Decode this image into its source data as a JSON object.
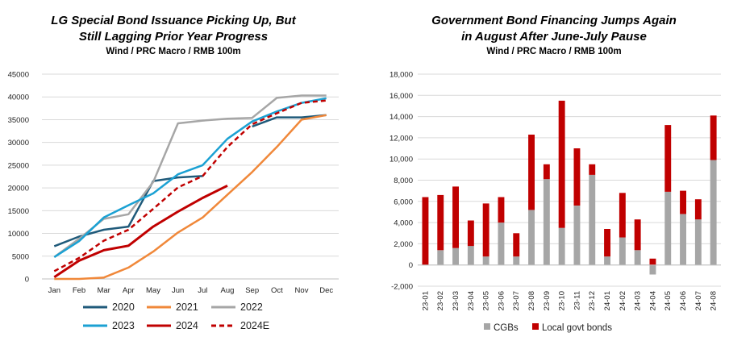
{
  "chart_data": [
    {
      "type": "line",
      "title_lines": [
        "LG Special Bond Issuance Picking Up, But",
        "Still Lagging Prior Year Progress"
      ],
      "subtitle": "Wind / PRC Macro / RMB 100m",
      "categories": [
        "Jan",
        "Feb",
        "Mar",
        "Apr",
        "May",
        "Jun",
        "Jul",
        "Aug",
        "Sep",
        "Oct",
        "Nov",
        "Dec"
      ],
      "ylim": [
        0,
        45000
      ],
      "yticks": [
        "0",
        "5000",
        "10000",
        "15000",
        "20000",
        "25000",
        "30000",
        "35000",
        "40000",
        "45000"
      ],
      "grid": "horizontal",
      "legend_position": "bottom",
      "series": [
        {
          "name": "2020",
          "color": "#1f5a7a",
          "dash": false,
          "width": 2.5,
          "values": [
            7200,
            9300,
            10800,
            11500,
            21500,
            22300,
            22600,
            null,
            33500,
            35500,
            35500,
            36000
          ]
        },
        {
          "name": "2021",
          "color": "#f0883a",
          "dash": false,
          "width": 2.5,
          "values": [
            0,
            0,
            300,
            2500,
            6000,
            10200,
            13500,
            18500,
            23500,
            29000,
            35000,
            36000
          ]
        },
        {
          "name": "2022",
          "color": "#a6a6a6",
          "dash": false,
          "width": 2.5,
          "values": [
            4800,
            8800,
            13200,
            14200,
            21300,
            34200,
            34800,
            35200,
            35400,
            39800,
            40300,
            40300
          ]
        },
        {
          "name": "2023",
          "color": "#1ba1d3",
          "dash": false,
          "width": 2.5,
          "values": [
            4800,
            8300,
            13500,
            16200,
            18800,
            23000,
            25000,
            30800,
            34600,
            36800,
            38700,
            39700
          ]
        },
        {
          "name": "2024",
          "color": "#c00000",
          "dash": false,
          "width": 3,
          "values": [
            400,
            4000,
            6300,
            7300,
            11500,
            14800,
            17800,
            20500,
            null,
            null,
            null,
            null
          ]
        },
        {
          "name": "2024E",
          "color": "#c00000",
          "dash": true,
          "width": 2.5,
          "values": [
            1700,
            4600,
            8400,
            10800,
            15400,
            20100,
            22600,
            29000,
            34000,
            36400,
            38700,
            39200
          ]
        }
      ]
    },
    {
      "type": "bar",
      "stacked": true,
      "title_lines": [
        "Government Bond Financing Jumps Again",
        "in August After June-July Pause"
      ],
      "subtitle": "Wind / PRC Macro / RMB 100m",
      "categories": [
        "23-01",
        "23-02",
        "23-03",
        "23-04",
        "23-05",
        "23-06",
        "23-07",
        "23-08",
        "23-09",
        "23-10",
        "23-11",
        "23-12",
        "24-01",
        "24-02",
        "24-03",
        "24-04",
        "24-05",
        "24-06",
        "24-07",
        "24-08"
      ],
      "ylim": [
        -2000,
        18000
      ],
      "yticks": [
        "-2,000",
        "0",
        "2,000",
        "4,000",
        "6,000",
        "8,000",
        "10,000",
        "12,000",
        "14,000",
        "16,000",
        "18,000"
      ],
      "grid": "horizontal",
      "legend_position": "bottom",
      "series": [
        {
          "name": "CGBs",
          "color": "#a6a6a6",
          "values": [
            0,
            1400,
            1600,
            1800,
            800,
            4000,
            800,
            5200,
            8100,
            3500,
            5600,
            8500,
            800,
            2600,
            1400,
            -900,
            6900,
            4800,
            4300,
            9900
          ]
        },
        {
          "name": "Local govt bonds",
          "color": "#c00000",
          "values": [
            6400,
            5200,
            5800,
            2400,
            5000,
            2400,
            2200,
            7100,
            1400,
            12000,
            5400,
            1000,
            2600,
            4200,
            2900,
            600,
            6300,
            2200,
            1900,
            4200
          ]
        }
      ]
    }
  ]
}
